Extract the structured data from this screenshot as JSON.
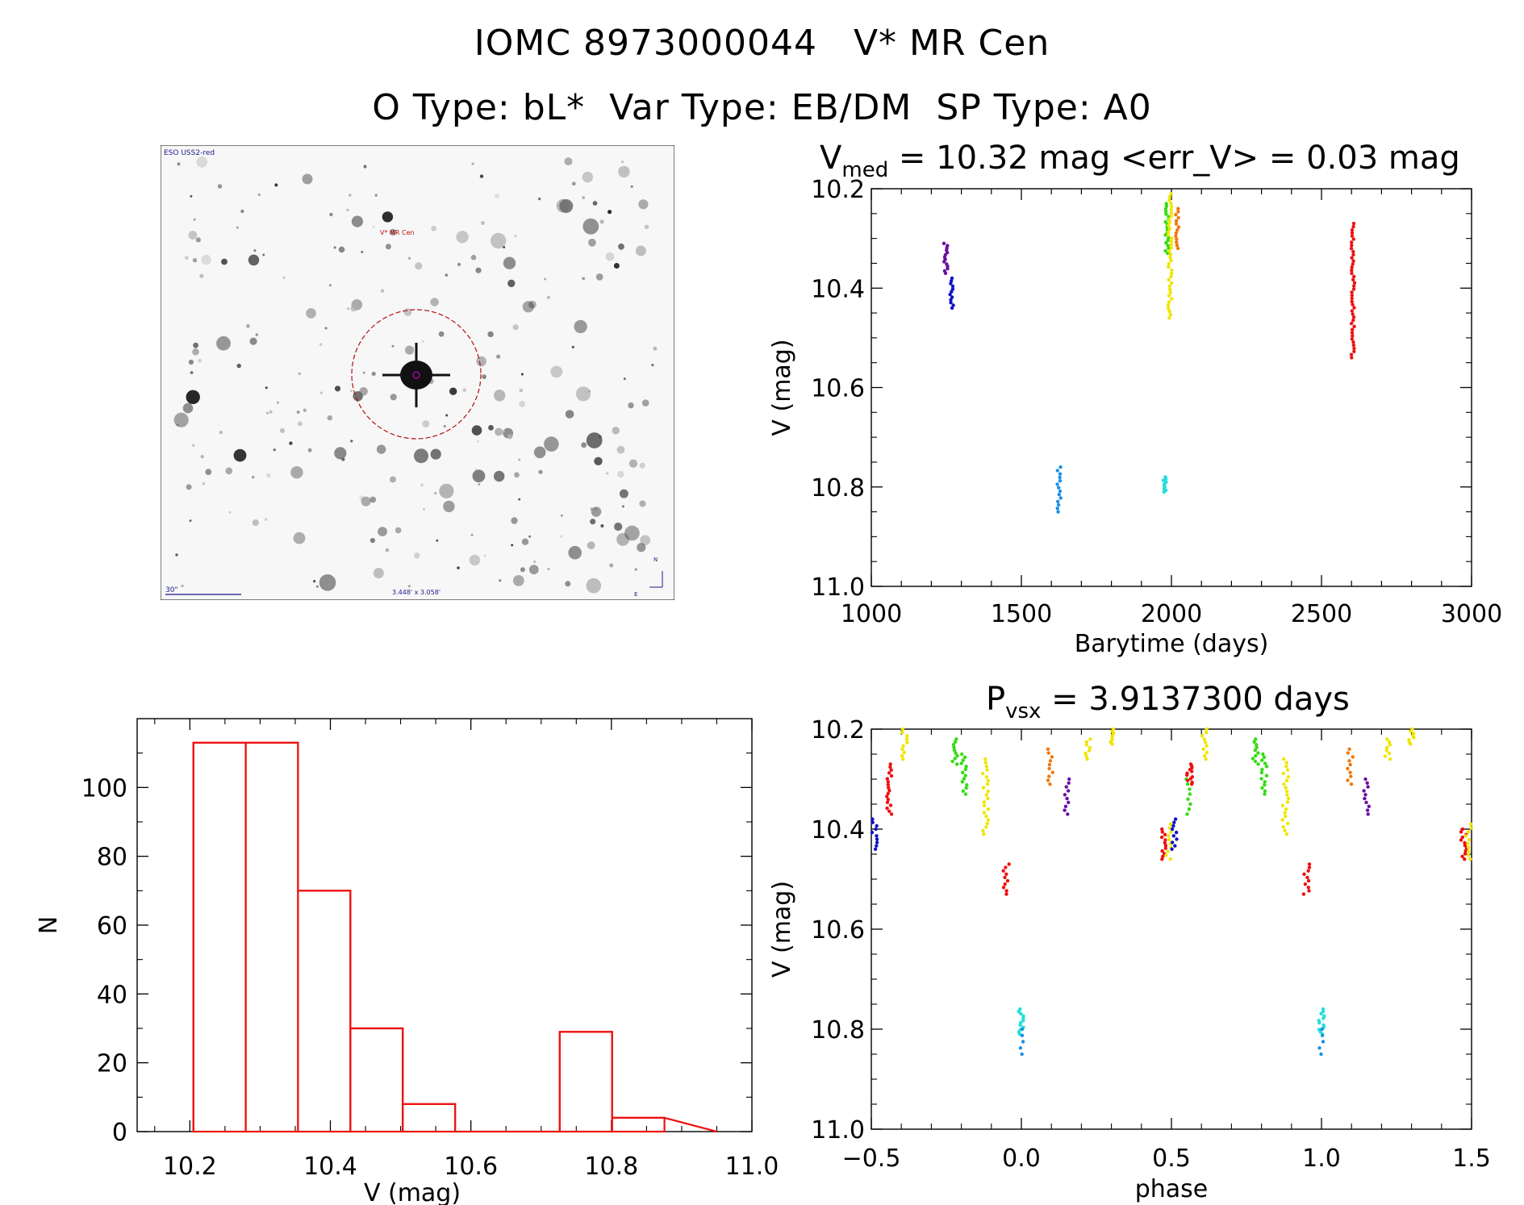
{
  "header": {
    "line1": "IOMC 8973000044   V* MR Cen",
    "line2": "O Type: bL*  Var Type: EB/DM  SP Type: A0"
  },
  "sky_image": {
    "survey_label": "ESO USS2-red",
    "target_label": "V* MR Cen",
    "scale_label": "30\"",
    "fov_label": "3.448' x 3.058'",
    "compass_n": "N",
    "compass_e": "E"
  },
  "colors": {
    "red": "#ee1111",
    "blue": "#1111cc",
    "purple": "#6a0fa0",
    "skyblue": "#1a8fe6",
    "cyan": "#22dddd",
    "green": "#33dd11",
    "yellow": "#f0e600",
    "orange": "#f07810",
    "histogram": "#ee1111"
  },
  "chart_data": [
    {
      "type": "scatter",
      "id": "lightcurve",
      "title": "V_med = 10.32 mag <err_V> = 0.03 mag",
      "title_main": "V",
      "title_sub": "med",
      "title_rest": " = 10.32 mag <err_V> = 0.03 mag",
      "xlabel": "Barytime (days)",
      "ylabel": "V (mag)",
      "xlim": [
        1000,
        3000
      ],
      "ylim": [
        11.0,
        10.2
      ],
      "xticks": [
        "1000",
        "1500",
        "2000",
        "2500",
        "3000"
      ],
      "yticks": [
        "10.2",
        "10.4",
        "10.6",
        "10.8",
        "11.0"
      ],
      "series": [
        {
          "name": "purple",
          "color_key": "purple",
          "x": 1248,
          "ymin": 10.31,
          "ymax": 10.37,
          "n": 14
        },
        {
          "name": "blue",
          "color_key": "blue",
          "x": 1268,
          "ymin": 10.38,
          "ymax": 10.44,
          "n": 12
        },
        {
          "name": "skyblue",
          "color_key": "skyblue",
          "x": 1626,
          "ymin": 10.76,
          "ymax": 10.85,
          "n": 14
        },
        {
          "name": "cyan",
          "color_key": "cyan",
          "x": 1978,
          "ymin": 10.78,
          "ymax": 10.81,
          "n": 10
        },
        {
          "name": "green",
          "color_key": "green",
          "x": 1985,
          "ymin": 10.23,
          "ymax": 10.33,
          "n": 20
        },
        {
          "name": "yellow",
          "color_key": "yellow",
          "x": 1995,
          "ymin": 10.21,
          "ymax": 10.46,
          "n": 40
        },
        {
          "name": "orange",
          "color_key": "orange",
          "x": 2020,
          "ymin": 10.24,
          "ymax": 10.32,
          "n": 14
        },
        {
          "name": "red",
          "color_key": "red",
          "x": 2605,
          "ymin": 10.27,
          "ymax": 10.54,
          "n": 44
        }
      ]
    },
    {
      "type": "bar",
      "id": "histogram",
      "xlabel": "V (mag)",
      "ylabel": "N",
      "xlim": [
        10.125,
        11.0
      ],
      "ylim": [
        0,
        120
      ],
      "xticks": [
        "10.2",
        "10.4",
        "10.6",
        "10.8",
        "11.0"
      ],
      "yticks": [
        "0",
        "20",
        "40",
        "60",
        "80",
        "100"
      ],
      "bin_edges": [
        10.205,
        10.2795,
        10.354,
        10.4285,
        10.503,
        10.5775,
        10.652,
        10.7265,
        10.801,
        10.8755
      ],
      "values": [
        113,
        113,
        70,
        30,
        8,
        0,
        0,
        29,
        4
      ]
    },
    {
      "type": "scatter",
      "id": "phased",
      "title": "P_vsx = 3.9137300 days",
      "title_main": "P",
      "title_sub": "vsx",
      "title_rest": " = 3.9137300 days",
      "xlabel": "phase",
      "ylabel": "V (mag)",
      "xlim": [
        -0.5,
        1.5
      ],
      "ylim": [
        11.0,
        10.2
      ],
      "xticks": [
        "−0.5",
        "0.0",
        "0.5",
        "1.0",
        "1.5"
      ],
      "yticks": [
        "10.2",
        "10.4",
        "10.6",
        "10.8",
        "11.0"
      ],
      "series": [
        {
          "color_key": "blue",
          "phase": -0.49,
          "ymin": 10.38,
          "ymax": 10.44,
          "n": 10
        },
        {
          "color_key": "red",
          "phase": -0.44,
          "ymin": 10.27,
          "ymax": 10.37,
          "n": 18
        },
        {
          "color_key": "yellow",
          "phase": -0.39,
          "ymin": 10.2,
          "ymax": 10.26,
          "n": 10
        },
        {
          "color_key": "green",
          "phase": -0.22,
          "ymin": 10.22,
          "ymax": 10.27,
          "n": 10
        },
        {
          "color_key": "green",
          "phase": -0.19,
          "ymin": 10.25,
          "ymax": 10.33,
          "n": 14
        },
        {
          "color_key": "yellow",
          "phase": -0.12,
          "ymin": 10.26,
          "ymax": 10.41,
          "n": 22
        },
        {
          "color_key": "red",
          "phase": -0.05,
          "ymin": 10.47,
          "ymax": 10.53,
          "n": 10
        },
        {
          "color_key": "cyan",
          "phase": 0.0,
          "ymin": 10.76,
          "ymax": 10.81,
          "n": 12
        },
        {
          "color_key": "skyblue",
          "phase": 0.0,
          "ymin": 10.8,
          "ymax": 10.85,
          "n": 5
        },
        {
          "color_key": "orange",
          "phase": 0.095,
          "ymin": 10.24,
          "ymax": 10.31,
          "n": 10
        },
        {
          "color_key": "purple",
          "phase": 0.15,
          "ymin": 10.3,
          "ymax": 10.37,
          "n": 10
        },
        {
          "color_key": "yellow",
          "phase": 0.22,
          "ymin": 10.22,
          "ymax": 10.26,
          "n": 8
        },
        {
          "color_key": "yellow",
          "phase": 0.3,
          "ymin": 10.2,
          "ymax": 10.23,
          "n": 8
        },
        {
          "color_key": "red",
          "phase": 0.475,
          "ymin": 10.4,
          "ymax": 10.46,
          "n": 12
        },
        {
          "color_key": "yellow",
          "phase": 0.49,
          "ymin": 10.39,
          "ymax": 10.46,
          "n": 10
        },
        {
          "color_key": "blue",
          "phase": 0.51,
          "ymin": 10.38,
          "ymax": 10.44,
          "n": 10
        },
        {
          "color_key": "green",
          "phase": 0.555,
          "ymin": 10.3,
          "ymax": 10.37,
          "n": 8
        },
        {
          "color_key": "red",
          "phase": 0.56,
          "ymin": 10.27,
          "ymax": 10.31,
          "n": 12
        },
        {
          "color_key": "yellow",
          "phase": 0.61,
          "ymin": 10.2,
          "ymax": 10.26,
          "n": 10
        },
        {
          "color_key": "green",
          "phase": 0.78,
          "ymin": 10.22,
          "ymax": 10.27,
          "n": 10
        },
        {
          "color_key": "green",
          "phase": 0.81,
          "ymin": 10.25,
          "ymax": 10.33,
          "n": 14
        },
        {
          "color_key": "yellow",
          "phase": 0.88,
          "ymin": 10.26,
          "ymax": 10.41,
          "n": 22
        },
        {
          "color_key": "red",
          "phase": 0.95,
          "ymin": 10.47,
          "ymax": 10.53,
          "n": 10
        },
        {
          "color_key": "cyan",
          "phase": 1.0,
          "ymin": 10.76,
          "ymax": 10.81,
          "n": 12
        },
        {
          "color_key": "skyblue",
          "phase": 1.0,
          "ymin": 10.8,
          "ymax": 10.85,
          "n": 5
        },
        {
          "color_key": "orange",
          "phase": 1.095,
          "ymin": 10.24,
          "ymax": 10.31,
          "n": 10
        },
        {
          "color_key": "purple",
          "phase": 1.15,
          "ymin": 10.3,
          "ymax": 10.37,
          "n": 10
        },
        {
          "color_key": "yellow",
          "phase": 1.22,
          "ymin": 10.22,
          "ymax": 10.26,
          "n": 8
        },
        {
          "color_key": "yellow",
          "phase": 1.3,
          "ymin": 10.2,
          "ymax": 10.23,
          "n": 8
        },
        {
          "color_key": "red",
          "phase": 1.475,
          "ymin": 10.4,
          "ymax": 10.46,
          "n": 12
        },
        {
          "color_key": "yellow",
          "phase": 1.49,
          "ymin": 10.39,
          "ymax": 10.46,
          "n": 10
        }
      ]
    }
  ]
}
